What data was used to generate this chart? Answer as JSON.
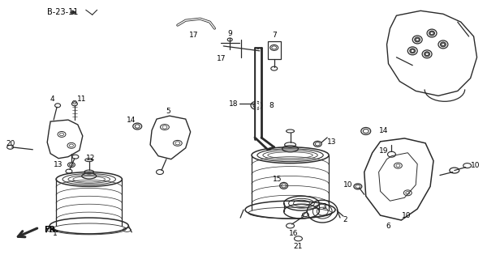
{
  "bg_color": "#ffffff",
  "line_color": "#2a2a2a",
  "fig_width": 6.16,
  "fig_height": 3.2,
  "dpi": 100,
  "note_text": "B-23-11"
}
